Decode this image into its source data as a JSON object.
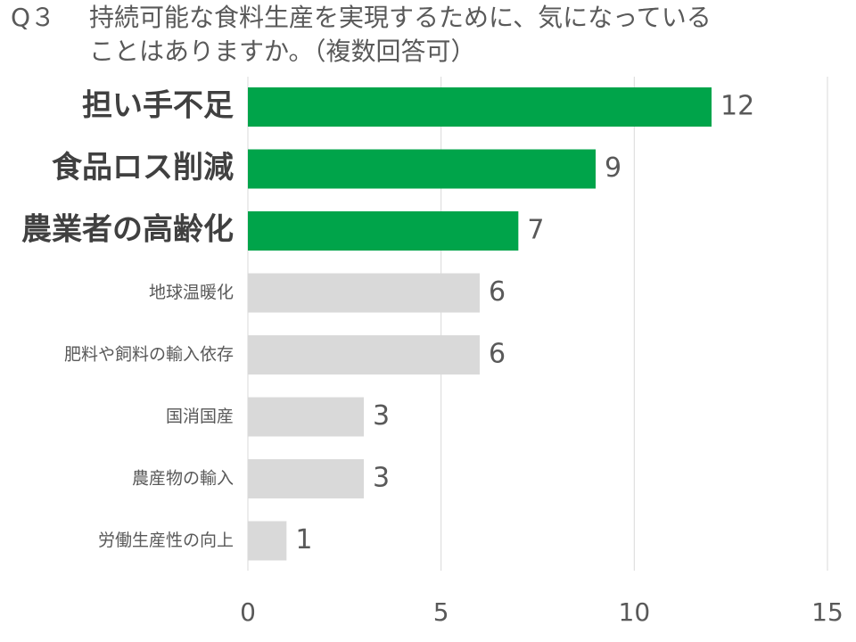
{
  "title": {
    "number": "Q３",
    "line1": "持続可能な食料生産を実現するために、気になっている",
    "line2": "ことはありますか。（複数回答可）"
  },
  "colors": {
    "highlight": "#00A44A",
    "normal": "#D9D9D9",
    "grid": "#D9D9D9",
    "text": "#595959",
    "highlight_label": "#404040"
  },
  "chart_data": {
    "type": "bar",
    "orientation": "horizontal",
    "categories": [
      "担い手不足",
      "食品ロス削減",
      "農業者の高齢化",
      "地球温暖化",
      "肥料や飼料の輸入依存",
      "国消国産",
      "農産物の輸入",
      "労働生産性の向上"
    ],
    "values": [
      12,
      9,
      7,
      6,
      6,
      3,
      3,
      1
    ],
    "highlighted": [
      true,
      true,
      true,
      false,
      false,
      false,
      false,
      false
    ],
    "xlim": [
      0,
      15
    ],
    "xticks": [
      0,
      5,
      10,
      15
    ],
    "grid": true,
    "legend": "none",
    "data_labels": true
  }
}
